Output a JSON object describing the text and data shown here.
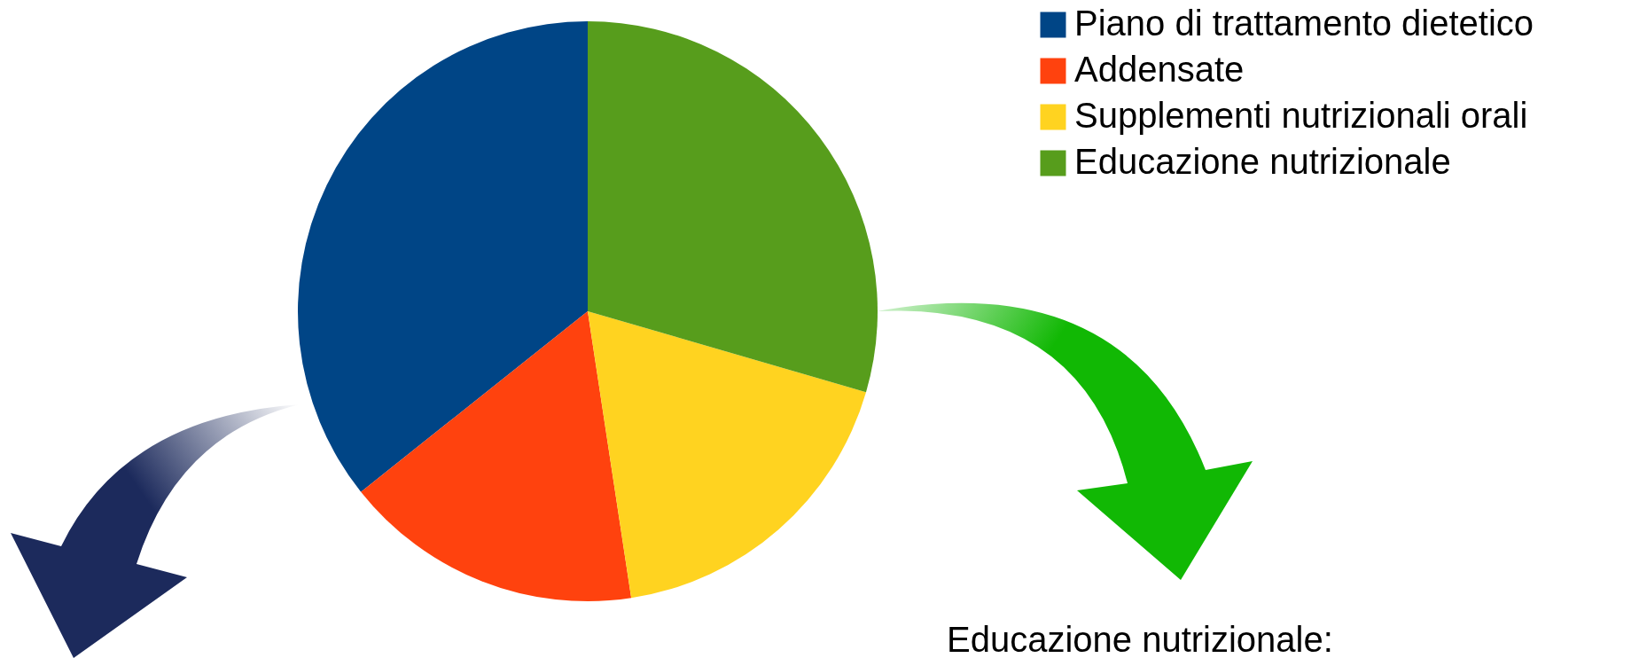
{
  "chart_data": {
    "type": "pie",
    "categories": [
      "Piano di trattamento dietetico",
      "Addensate",
      "Supplementi nutrizionali orali",
      "Educazione nutrizionale"
    ],
    "values": [
      35.7,
      16.7,
      18.1,
      29.5
    ],
    "colors": [
      "#004586",
      "#ff420e",
      "#ffd320",
      "#579d1c"
    ],
    "legend": "top right",
    "annotations": [
      "Educazione nutrizionale:"
    ]
  }
}
